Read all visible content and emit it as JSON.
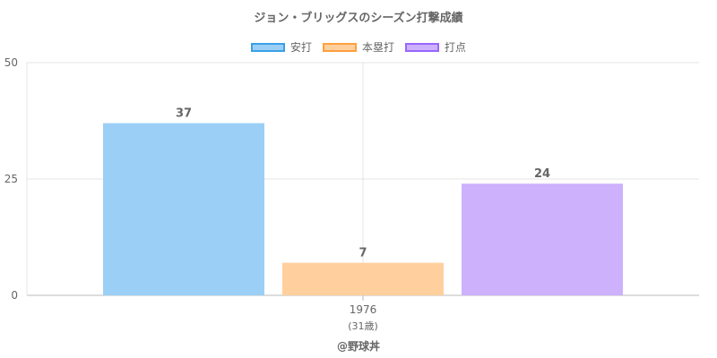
{
  "chart_data": {
    "type": "bar",
    "title": "ジョン・ブリッグスのシーズン打撃成績",
    "categories": [
      "1976"
    ],
    "category_sublabels": [
      "(31歳)"
    ],
    "series": [
      {
        "name": "安打",
        "values": [
          37
        ],
        "fill": "#9ccff5",
        "stroke": "#3aa0e8"
      },
      {
        "name": "本塁打",
        "values": [
          7
        ],
        "fill": "#ffd09d",
        "stroke": "#ff9f40"
      },
      {
        "name": "打点",
        "values": [
          24
        ],
        "fill": "#cdb1fd",
        "stroke": "#9966ff"
      }
    ],
    "ylim": [
      0,
      50
    ],
    "yticks": [
      0,
      25,
      50
    ],
    "grid": true,
    "legend_position": "top"
  },
  "footer": {
    "credit": "@野球丼"
  }
}
